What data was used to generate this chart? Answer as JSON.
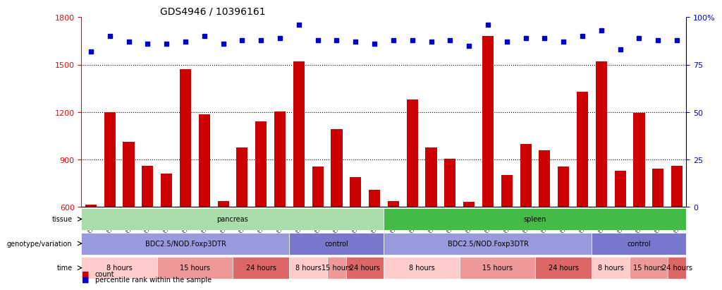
{
  "title": "GDS4946 / 10396161",
  "samples": [
    "GSM957812",
    "GSM957813",
    "GSM957814",
    "GSM957805",
    "GSM957806",
    "GSM957807",
    "GSM957808",
    "GSM957809",
    "GSM957810",
    "GSM957811",
    "GSM957828",
    "GSM957829",
    "GSM957824",
    "GSM957825",
    "GSM957826",
    "GSM957827",
    "GSM957821",
    "GSM957822",
    "GSM957823",
    "GSM957815",
    "GSM957816",
    "GSM957817",
    "GSM957818",
    "GSM957819",
    "GSM957820",
    "GSM957834",
    "GSM957835",
    "GSM957836",
    "GSM957830",
    "GSM957831",
    "GSM957832",
    "GSM957833"
  ],
  "counts": [
    615,
    1200,
    1010,
    860,
    810,
    1470,
    1185,
    635,
    975,
    1140,
    1205,
    1520,
    855,
    1090,
    790,
    710,
    635,
    1280,
    975,
    905,
    630,
    1680,
    800,
    1000,
    960,
    855,
    1330,
    1520,
    830,
    1195,
    840,
    860
  ],
  "percentile_ranks": [
    82,
    90,
    87,
    86,
    86,
    87,
    90,
    86,
    88,
    88,
    89,
    96,
    88,
    88,
    87,
    86,
    88,
    88,
    87,
    88,
    85,
    96,
    87,
    89,
    89,
    87,
    90,
    93,
    83,
    89,
    88,
    88
  ],
  "ylim_left": [
    600,
    1800
  ],
  "ylim_right": [
    0,
    100
  ],
  "yticks_left": [
    600,
    900,
    1200,
    1500,
    1800
  ],
  "yticks_right": [
    0,
    25,
    50,
    75,
    100
  ],
  "bar_color": "#cc0000",
  "dot_color": "#0000cc",
  "tissue_pancreas": {
    "label": "pancreas",
    "start": 0,
    "end": 16,
    "color": "#aaddaa"
  },
  "tissue_spleen": {
    "label": "spleen",
    "start": 16,
    "end": 32,
    "color": "#44bb44"
  },
  "genotype_blocks": [
    {
      "label": "BDC2.5/NOD.Foxp3DTR",
      "start": 0,
      "end": 11,
      "color": "#9999dd"
    },
    {
      "label": "control",
      "start": 11,
      "end": 16,
      "color": "#7777cc"
    },
    {
      "label": "BDC2.5/NOD.Foxp3DTR",
      "start": 16,
      "end": 27,
      "color": "#9999dd"
    },
    {
      "label": "control",
      "start": 27,
      "end": 32,
      "color": "#7777cc"
    }
  ],
  "time_blocks": [
    {
      "label": "8 hours",
      "start": 0,
      "end": 4,
      "color": "#ffcccc"
    },
    {
      "label": "15 hours",
      "start": 4,
      "end": 8,
      "color": "#ee9999"
    },
    {
      "label": "24 hours",
      "start": 8,
      "end": 11,
      "color": "#dd6666"
    },
    {
      "label": "8 hours",
      "start": 11,
      "end": 13,
      "color": "#ffcccc"
    },
    {
      "label": "15 hours",
      "start": 13,
      "end": 14,
      "color": "#ee9999"
    },
    {
      "label": "24 hours",
      "start": 14,
      "end": 16,
      "color": "#dd6666"
    },
    {
      "label": "8 hours",
      "start": 16,
      "end": 20,
      "color": "#ffcccc"
    },
    {
      "label": "15 hours",
      "start": 20,
      "end": 24,
      "color": "#ee9999"
    },
    {
      "label": "24 hours",
      "start": 24,
      "end": 27,
      "color": "#dd6666"
    },
    {
      "label": "8 hours",
      "start": 27,
      "end": 29,
      "color": "#ffcccc"
    },
    {
      "label": "15 hours",
      "start": 29,
      "end": 31,
      "color": "#ee9999"
    },
    {
      "label": "24 hours",
      "start": 31,
      "end": 32,
      "color": "#dd6666"
    }
  ],
  "row_labels": [
    "tissue",
    "genotype/variation",
    "time"
  ],
  "legend_items": [
    {
      "label": "count",
      "color": "#cc0000",
      "marker": "s"
    },
    {
      "label": "percentile rank within the sample",
      "color": "#0000cc",
      "marker": "s"
    }
  ]
}
